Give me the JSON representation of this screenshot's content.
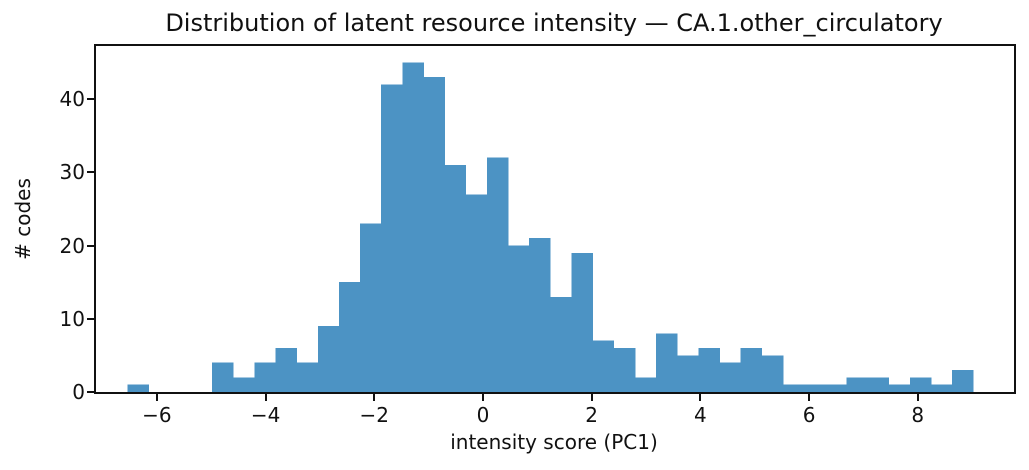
{
  "figure": {
    "background": "#ffffff",
    "text_color": "#111111"
  },
  "chart_data": {
    "type": "bar",
    "subtype": "histogram",
    "title": "Distribution of latent resource intensity — CA.1.other_circulatory",
    "xlabel": "intensity score (PC1)",
    "ylabel": "# codes",
    "bin_start": -6.54,
    "bin_width": 0.389,
    "counts": [
      1,
      0,
      0,
      0,
      4,
      2,
      4,
      6,
      4,
      9,
      15,
      23,
      42,
      45,
      43,
      31,
      27,
      32,
      20,
      21,
      13,
      19,
      7,
      6,
      2,
      8,
      5,
      6,
      4,
      6,
      5,
      1,
      1,
      1,
      2,
      2,
      1,
      2,
      1,
      3
    ],
    "total_codes": 424,
    "xlim": [
      -7.12,
      9.77
    ],
    "ylim": [
      0,
      47.25
    ],
    "xticks": {
      "values": [
        -6,
        -4,
        -2,
        0,
        2,
        4,
        6,
        8
      ],
      "labels": [
        "−6",
        "−4",
        "−2",
        "0",
        "2",
        "4",
        "6",
        "8"
      ]
    },
    "yticks": {
      "values": [
        0,
        10,
        20,
        30,
        40
      ],
      "labels": [
        "0",
        "10",
        "20",
        "30",
        "40"
      ]
    },
    "bar_color": "#4c93c4",
    "axis_color": "#111111",
    "grid": false,
    "legend": null
  }
}
